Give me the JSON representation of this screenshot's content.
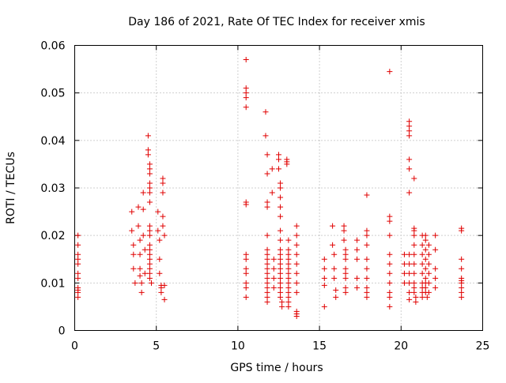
{
  "chart_data": {
    "type": "scatter",
    "title": "Day 186 of 2021, Rate Of TEC Index for receiver xmis",
    "xlabel": "GPS time / hours",
    "ylabel": "ROTI / TECUs",
    "xlim": [
      0,
      25
    ],
    "ylim": [
      0,
      0.06
    ],
    "xticks": [
      "0",
      "5",
      "10",
      "15",
      "20",
      "25"
    ],
    "yticks": [
      "0",
      "0.01",
      "0.02",
      "0.03",
      "0.04",
      "0.05",
      "0.06"
    ],
    "grid": true,
    "marker": "plus",
    "color": "#e00000",
    "points": [
      [
        0.2,
        0.02
      ],
      [
        0.2,
        0.018
      ],
      [
        0.2,
        0.016
      ],
      [
        0.2,
        0.015
      ],
      [
        0.2,
        0.014
      ],
      [
        0.2,
        0.012
      ],
      [
        0.2,
        0.011
      ],
      [
        0.2,
        0.009
      ],
      [
        0.2,
        0.0085
      ],
      [
        0.2,
        0.008
      ],
      [
        0.2,
        0.007
      ],
      [
        3.5,
        0.025
      ],
      [
        3.5,
        0.021
      ],
      [
        3.6,
        0.018
      ],
      [
        3.6,
        0.016
      ],
      [
        3.6,
        0.013
      ],
      [
        3.7,
        0.01
      ],
      [
        3.9,
        0.026
      ],
      [
        3.9,
        0.022
      ],
      [
        4.0,
        0.019
      ],
      [
        4.0,
        0.016
      ],
      [
        4.0,
        0.013
      ],
      [
        4.0,
        0.0115
      ],
      [
        4.1,
        0.01
      ],
      [
        4.1,
        0.008
      ],
      [
        4.2,
        0.029
      ],
      [
        4.2,
        0.0255
      ],
      [
        4.2,
        0.02
      ],
      [
        4.3,
        0.017
      ],
      [
        4.3,
        0.012
      ],
      [
        4.5,
        0.041
      ],
      [
        4.5,
        0.038
      ],
      [
        4.5,
        0.037
      ],
      [
        4.6,
        0.035
      ],
      [
        4.6,
        0.034
      ],
      [
        4.6,
        0.033
      ],
      [
        4.6,
        0.031
      ],
      [
        4.6,
        0.03
      ],
      [
        4.6,
        0.029
      ],
      [
        4.6,
        0.027
      ],
      [
        4.6,
        0.022
      ],
      [
        4.6,
        0.021
      ],
      [
        4.6,
        0.02
      ],
      [
        4.6,
        0.018
      ],
      [
        4.6,
        0.017
      ],
      [
        4.6,
        0.016
      ],
      [
        4.6,
        0.015
      ],
      [
        4.6,
        0.014
      ],
      [
        4.6,
        0.013
      ],
      [
        4.6,
        0.012
      ],
      [
        4.6,
        0.011
      ],
      [
        4.7,
        0.01
      ],
      [
        5.1,
        0.025
      ],
      [
        5.1,
        0.021
      ],
      [
        5.2,
        0.019
      ],
      [
        5.2,
        0.015
      ],
      [
        5.2,
        0.012
      ],
      [
        5.3,
        0.0095
      ],
      [
        5.3,
        0.009
      ],
      [
        5.3,
        0.008
      ],
      [
        5.4,
        0.032
      ],
      [
        5.4,
        0.031
      ],
      [
        5.4,
        0.029
      ],
      [
        5.4,
        0.024
      ],
      [
        5.4,
        0.022
      ],
      [
        5.5,
        0.02
      ],
      [
        5.5,
        0.0095
      ],
      [
        5.5,
        0.0065
      ],
      [
        10.5,
        0.057
      ],
      [
        10.5,
        0.051
      ],
      [
        10.5,
        0.05
      ],
      [
        10.5,
        0.049
      ],
      [
        10.5,
        0.047
      ],
      [
        10.5,
        0.027
      ],
      [
        10.5,
        0.0265
      ],
      [
        10.5,
        0.016
      ],
      [
        10.5,
        0.015
      ],
      [
        10.5,
        0.013
      ],
      [
        10.5,
        0.012
      ],
      [
        10.5,
        0.01
      ],
      [
        10.5,
        0.009
      ],
      [
        10.5,
        0.007
      ],
      [
        11.7,
        0.046
      ],
      [
        11.7,
        0.041
      ],
      [
        11.8,
        0.037
      ],
      [
        11.8,
        0.033
      ],
      [
        11.8,
        0.027
      ],
      [
        11.8,
        0.026
      ],
      [
        11.8,
        0.02
      ],
      [
        11.8,
        0.017
      ],
      [
        11.8,
        0.016
      ],
      [
        11.8,
        0.015
      ],
      [
        11.8,
        0.014
      ],
      [
        11.8,
        0.013
      ],
      [
        11.8,
        0.012
      ],
      [
        11.8,
        0.011
      ],
      [
        11.8,
        0.01
      ],
      [
        11.8,
        0.009
      ],
      [
        11.8,
        0.008
      ],
      [
        11.8,
        0.007
      ],
      [
        11.8,
        0.006
      ],
      [
        12.1,
        0.034
      ],
      [
        12.1,
        0.029
      ],
      [
        12.2,
        0.015
      ],
      [
        12.2,
        0.013
      ],
      [
        12.2,
        0.011
      ],
      [
        12.2,
        0.009
      ],
      [
        12.5,
        0.037
      ],
      [
        12.5,
        0.036
      ],
      [
        12.5,
        0.034
      ],
      [
        12.6,
        0.031
      ],
      [
        12.6,
        0.03
      ],
      [
        12.6,
        0.028
      ],
      [
        12.6,
        0.026
      ],
      [
        12.6,
        0.024
      ],
      [
        12.6,
        0.021
      ],
      [
        12.6,
        0.019
      ],
      [
        12.6,
        0.017
      ],
      [
        12.6,
        0.016
      ],
      [
        12.6,
        0.015
      ],
      [
        12.6,
        0.014
      ],
      [
        12.6,
        0.013
      ],
      [
        12.6,
        0.012
      ],
      [
        12.6,
        0.011
      ],
      [
        12.6,
        0.01
      ],
      [
        12.6,
        0.009
      ],
      [
        12.6,
        0.008
      ],
      [
        12.6,
        0.007
      ],
      [
        12.7,
        0.006
      ],
      [
        12.7,
        0.005
      ],
      [
        13.0,
        0.036
      ],
      [
        13.0,
        0.0355
      ],
      [
        13.0,
        0.035
      ],
      [
        13.1,
        0.019
      ],
      [
        13.1,
        0.017
      ],
      [
        13.1,
        0.016
      ],
      [
        13.1,
        0.015
      ],
      [
        13.1,
        0.014
      ],
      [
        13.1,
        0.013
      ],
      [
        13.1,
        0.012
      ],
      [
        13.1,
        0.011
      ],
      [
        13.1,
        0.01
      ],
      [
        13.1,
        0.009
      ],
      [
        13.1,
        0.008
      ],
      [
        13.1,
        0.007
      ],
      [
        13.1,
        0.006
      ],
      [
        13.1,
        0.005
      ],
      [
        13.6,
        0.022
      ],
      [
        13.6,
        0.02
      ],
      [
        13.6,
        0.018
      ],
      [
        13.6,
        0.016
      ],
      [
        13.6,
        0.014
      ],
      [
        13.6,
        0.012
      ],
      [
        13.6,
        0.01
      ],
      [
        13.6,
        0.008
      ],
      [
        13.6,
        0.004
      ],
      [
        13.6,
        0.0035
      ],
      [
        13.6,
        0.003
      ],
      [
        15.3,
        0.015
      ],
      [
        15.3,
        0.013
      ],
      [
        15.3,
        0.011
      ],
      [
        15.3,
        0.0095
      ],
      [
        15.3,
        0.005
      ],
      [
        15.8,
        0.022
      ],
      [
        15.8,
        0.018
      ],
      [
        15.9,
        0.016
      ],
      [
        15.9,
        0.013
      ],
      [
        15.9,
        0.011
      ],
      [
        16.0,
        0.0085
      ],
      [
        16.0,
        0.007
      ],
      [
        16.5,
        0.022
      ],
      [
        16.5,
        0.021
      ],
      [
        16.5,
        0.019
      ],
      [
        16.6,
        0.017
      ],
      [
        16.6,
        0.016
      ],
      [
        16.6,
        0.015
      ],
      [
        16.6,
        0.013
      ],
      [
        16.6,
        0.012
      ],
      [
        16.6,
        0.011
      ],
      [
        16.6,
        0.009
      ],
      [
        16.6,
        0.008
      ],
      [
        17.3,
        0.019
      ],
      [
        17.3,
        0.017
      ],
      [
        17.3,
        0.015
      ],
      [
        17.3,
        0.011
      ],
      [
        17.3,
        0.009
      ],
      [
        17.9,
        0.0285
      ],
      [
        17.9,
        0.021
      ],
      [
        17.9,
        0.02
      ],
      [
        17.9,
        0.018
      ],
      [
        17.9,
        0.015
      ],
      [
        17.9,
        0.013
      ],
      [
        17.9,
        0.011
      ],
      [
        17.9,
        0.009
      ],
      [
        17.9,
        0.008
      ],
      [
        17.9,
        0.007
      ],
      [
        19.3,
        0.0545
      ],
      [
        19.3,
        0.024
      ],
      [
        19.3,
        0.023
      ],
      [
        19.3,
        0.02
      ],
      [
        19.3,
        0.016
      ],
      [
        19.3,
        0.014
      ],
      [
        19.3,
        0.012
      ],
      [
        19.3,
        0.01
      ],
      [
        19.3,
        0.008
      ],
      [
        19.3,
        0.007
      ],
      [
        19.3,
        0.005
      ],
      [
        20.2,
        0.016
      ],
      [
        20.2,
        0.014
      ],
      [
        20.2,
        0.012
      ],
      [
        20.2,
        0.01
      ],
      [
        20.5,
        0.044
      ],
      [
        20.5,
        0.043
      ],
      [
        20.5,
        0.042
      ],
      [
        20.5,
        0.041
      ],
      [
        20.5,
        0.036
      ],
      [
        20.5,
        0.034
      ],
      [
        20.5,
        0.029
      ],
      [
        20.5,
        0.016
      ],
      [
        20.5,
        0.014
      ],
      [
        20.5,
        0.012
      ],
      [
        20.5,
        0.01
      ],
      [
        20.5,
        0.008
      ],
      [
        20.5,
        0.0065
      ],
      [
        20.8,
        0.032
      ],
      [
        20.8,
        0.0215
      ],
      [
        20.8,
        0.021
      ],
      [
        20.8,
        0.02
      ],
      [
        20.8,
        0.018
      ],
      [
        20.8,
        0.016
      ],
      [
        20.8,
        0.014
      ],
      [
        20.8,
        0.012
      ],
      [
        20.8,
        0.01
      ],
      [
        20.8,
        0.009
      ],
      [
        20.8,
        0.008
      ],
      [
        20.9,
        0.007
      ],
      [
        20.9,
        0.006
      ],
      [
        21.3,
        0.02
      ],
      [
        21.3,
        0.018
      ],
      [
        21.3,
        0.016
      ],
      [
        21.3,
        0.014
      ],
      [
        21.3,
        0.012
      ],
      [
        21.3,
        0.01
      ],
      [
        21.3,
        0.009
      ],
      [
        21.3,
        0.008
      ],
      [
        21.3,
        0.007
      ],
      [
        21.5,
        0.02
      ],
      [
        21.5,
        0.019
      ],
      [
        21.5,
        0.017
      ],
      [
        21.5,
        0.015
      ],
      [
        21.5,
        0.013
      ],
      [
        21.5,
        0.011
      ],
      [
        21.5,
        0.01
      ],
      [
        21.5,
        0.009
      ],
      [
        21.5,
        0.008
      ],
      [
        21.6,
        0.007
      ],
      [
        21.7,
        0.018
      ],
      [
        21.7,
        0.016
      ],
      [
        21.7,
        0.014
      ],
      [
        21.7,
        0.012
      ],
      [
        21.7,
        0.01
      ],
      [
        21.7,
        0.008
      ],
      [
        22.1,
        0.02
      ],
      [
        22.1,
        0.017
      ],
      [
        22.1,
        0.013
      ],
      [
        22.1,
        0.011
      ],
      [
        22.1,
        0.009
      ],
      [
        23.7,
        0.0215
      ],
      [
        23.7,
        0.021
      ],
      [
        23.7,
        0.015
      ],
      [
        23.7,
        0.013
      ],
      [
        23.7,
        0.011
      ],
      [
        23.7,
        0.0105
      ],
      [
        23.7,
        0.01
      ],
      [
        23.7,
        0.009
      ],
      [
        23.7,
        0.008
      ],
      [
        23.7,
        0.007
      ]
    ]
  }
}
